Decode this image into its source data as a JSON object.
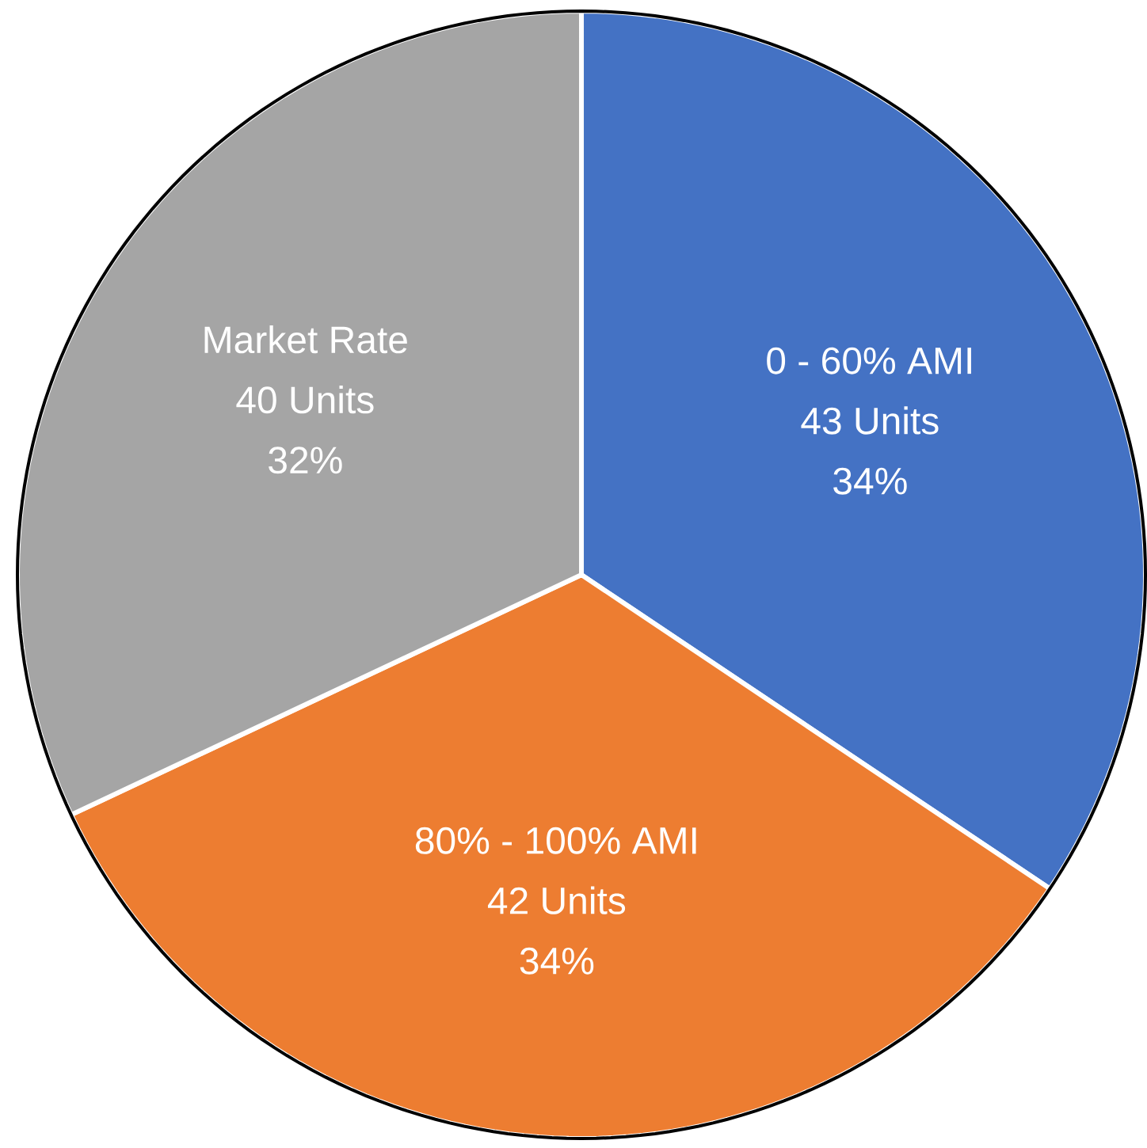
{
  "chart_data": {
    "type": "pie",
    "categories": [
      "0 - 60% AMI",
      "80% - 100% AMI",
      "Market Rate"
    ],
    "values": [
      43,
      42,
      40
    ],
    "colors": [
      "#4472c4",
      "#ed7d31",
      "#a5a5a5"
    ],
    "value_labels": [
      "43 Units",
      "42 Units",
      "40 Units"
    ],
    "annotations": [
      "34%",
      "34%",
      "32%"
    ]
  }
}
